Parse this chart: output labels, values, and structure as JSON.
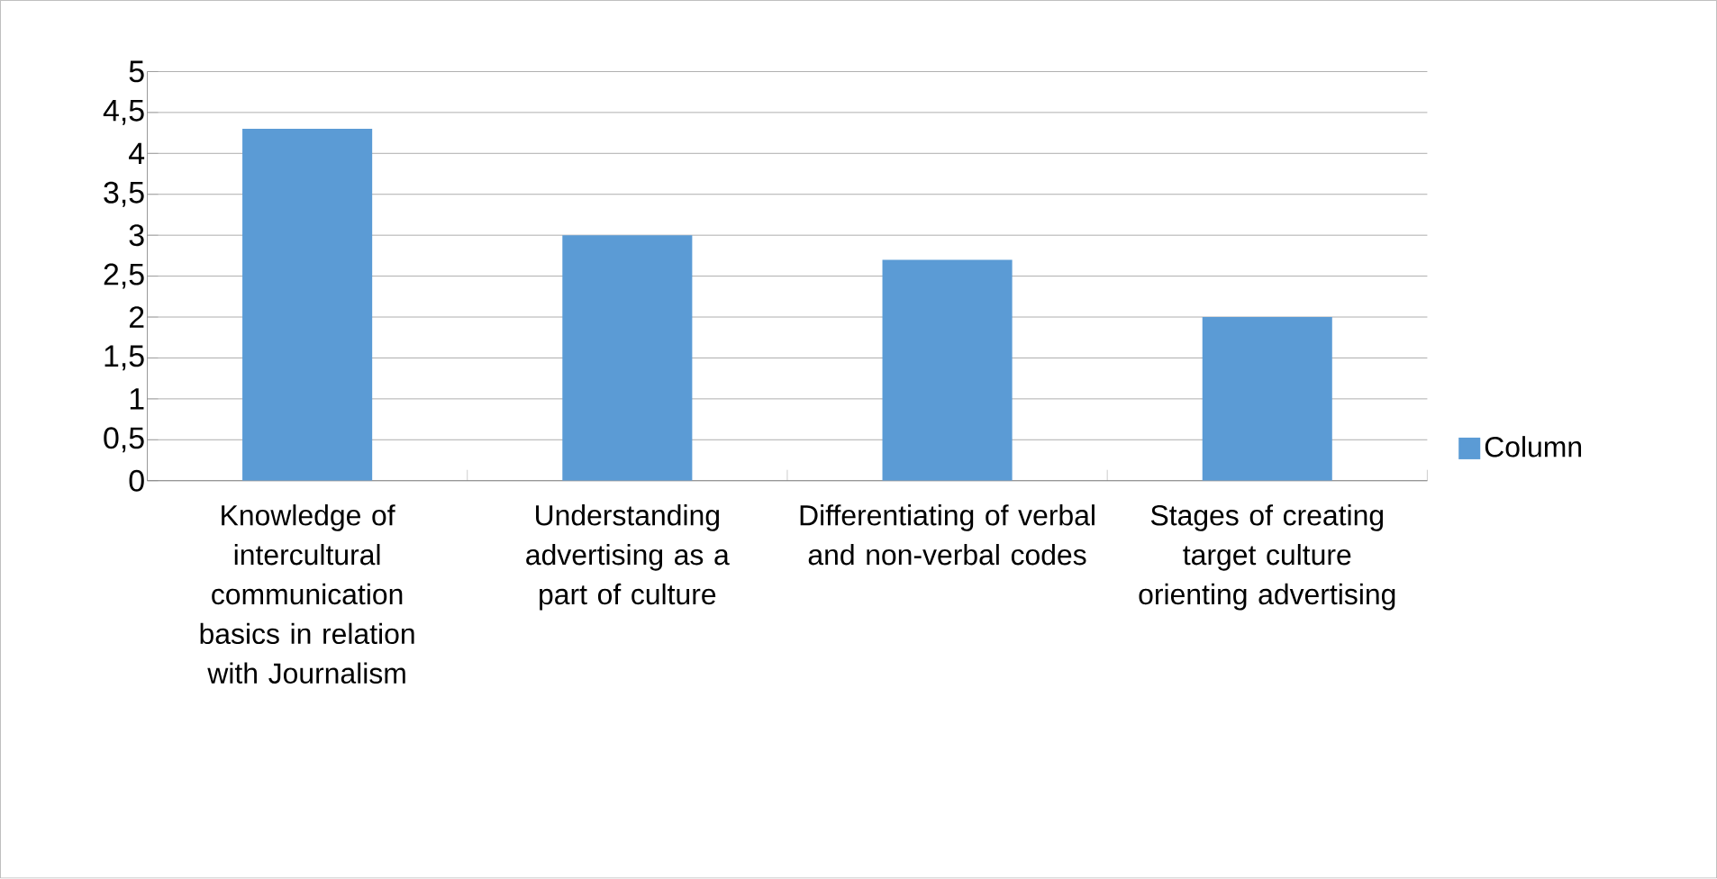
{
  "chart_data": {
    "type": "bar",
    "categories": [
      "Knowledge of intercultural communication basics in relation with Journalism",
      "Understanding advertising as a part of culture",
      "Differentiating of verbal and non-verbal codes",
      "Stages of creating target culture orienting advertising"
    ],
    "series": [
      {
        "name": "Column",
        "color": "#5b9bd5",
        "values": [
          4.3,
          3,
          2.7,
          2
        ]
      }
    ],
    "ylim": [
      0,
      5
    ],
    "yticks": [
      0,
      {
        "value": 0.5,
        "label": "0,5"
      },
      1,
      {
        "value": 1.5,
        "label": "1,5"
      },
      2,
      {
        "value": 2.5,
        "label": "2,5"
      },
      3,
      {
        "value": 3.5,
        "label": "3,5"
      },
      4,
      {
        "value": 4.5,
        "label": "4,5"
      },
      5
    ],
    "grid": "y",
    "legend": "right"
  }
}
